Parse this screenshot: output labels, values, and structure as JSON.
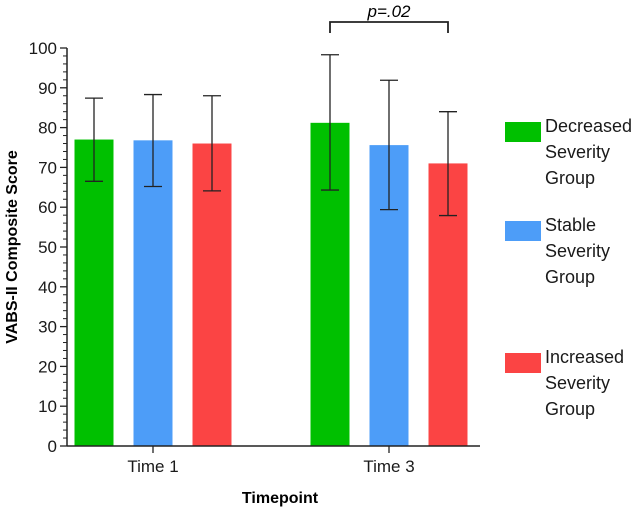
{
  "chart_data": {
    "type": "bar",
    "xlabel": "Timepoint",
    "ylabel": "VABS-II Composite Score",
    "ylim": [
      0,
      100
    ],
    "yticks": [
      0,
      10,
      20,
      30,
      40,
      50,
      60,
      70,
      80,
      90,
      100
    ],
    "categories": [
      "Time 1",
      "Time 3"
    ],
    "series": [
      {
        "name": "Decreased Severity Group",
        "legend_lines": [
          "Decreased",
          "Severity",
          "Group"
        ],
        "color": "#00c000",
        "values": [
          77,
          81.2
        ],
        "error_low": [
          66.5,
          64.3
        ],
        "error_high": [
          87.4,
          98.3
        ]
      },
      {
        "name": "Stable Severity Group",
        "legend_lines": [
          "Stable",
          "Severity",
          "Group"
        ],
        "color": "#4d9df8",
        "values": [
          76.8,
          75.6
        ],
        "error_low": [
          65.2,
          59.4
        ],
        "error_high": [
          88.3,
          91.9
        ]
      },
      {
        "name": "Increased Severity Group",
        "legend_lines": [
          "Increased",
          "Severity",
          "Group"
        ],
        "color": "#fb4444",
        "values": [
          76,
          71
        ],
        "error_low": [
          64.1,
          57.9
        ],
        "error_high": [
          88,
          84
        ]
      }
    ],
    "annotation": {
      "text": "p=.02",
      "category": "Time 3",
      "from_series": 0,
      "to_series": 2
    },
    "grid": false,
    "legend_position": "right"
  }
}
